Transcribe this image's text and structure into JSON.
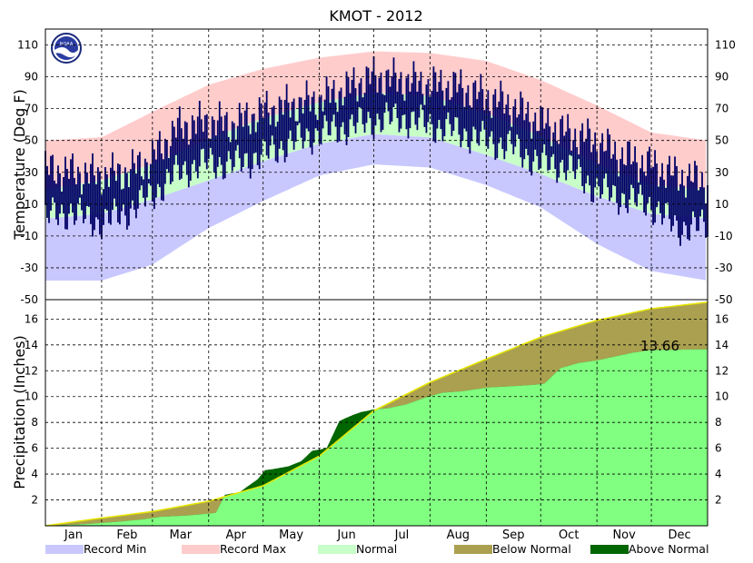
{
  "title": "KMOT - 2012",
  "colors": {
    "record_min": "#c8c8ff",
    "record_max": "#ffcccc",
    "normal": "#c8ffc8",
    "observed": "#000066",
    "precip_observed": "#80ff80",
    "below_normal": "#aaa050",
    "above_normal": "#006600",
    "normal_line": "#e6e600"
  },
  "chart_data": [
    {
      "type": "area",
      "panel": "temperature",
      "ylabel": "Temperature (Deg F)",
      "ylim": [
        -50,
        120
      ],
      "yticks": [
        110,
        90,
        70,
        50,
        30,
        10,
        -10,
        -30,
        -50
      ],
      "xlim_day": [
        1,
        366
      ],
      "months": [
        "Jan",
        "Feb",
        "Mar",
        "Apr",
        "May",
        "Jun",
        "Jul",
        "Aug",
        "Sep",
        "Oct",
        "Nov",
        "Dec"
      ],
      "grid": true,
      "bands": {
        "record_min": {
          "day": [
            1,
            32,
            60,
            91,
            121,
            152,
            182,
            213,
            244,
            274,
            305,
            335,
            366
          ],
          "low": [
            -38,
            -38,
            -28,
            -5,
            12,
            28,
            35,
            33,
            22,
            8,
            -15,
            -32,
            -38
          ]
        },
        "record_max": {
          "day": [
            1,
            32,
            60,
            91,
            121,
            152,
            182,
            213,
            244,
            274,
            305,
            335,
            366
          ],
          "high": [
            50,
            52,
            68,
            85,
            95,
            102,
            106,
            105,
            100,
            88,
            72,
            55,
            50
          ]
        },
        "normal": {
          "day": [
            1,
            32,
            60,
            91,
            121,
            152,
            182,
            213,
            244,
            274,
            305,
            335,
            366
          ],
          "low": [
            1,
            4,
            13,
            25,
            37,
            48,
            54,
            52,
            41,
            29,
            15,
            4,
            1
          ],
          "high": [
            19,
            25,
            35,
            51,
            64,
            74,
            80,
            78,
            67,
            53,
            35,
            22,
            19
          ]
        }
      },
      "observed": {
        "day": [
          1,
          15,
          31,
          46,
          59,
          74,
          90,
          105,
          120,
          135,
          151,
          166,
          181,
          196,
          212,
          227,
          243,
          258,
          273,
          288,
          304,
          319,
          334,
          349,
          366
        ],
        "high": [
          32,
          30,
          28,
          30,
          38,
          58,
          62,
          60,
          68,
          72,
          75,
          82,
          90,
          88,
          85,
          84,
          78,
          72,
          62,
          55,
          50,
          40,
          35,
          28,
          24
        ],
        "low": [
          2,
          5,
          -2,
          5,
          15,
          30,
          36,
          35,
          40,
          48,
          54,
          58,
          62,
          64,
          60,
          56,
          50,
          46,
          36,
          34,
          20,
          14,
          10,
          -5,
          -4
        ]
      }
    },
    {
      "type": "area",
      "panel": "precipitation",
      "ylabel": "Precipitation (Inches)",
      "ylim": [
        0,
        17.5
      ],
      "yticks": [
        2,
        4,
        6,
        8,
        10,
        12,
        14,
        16
      ],
      "xlim_day": [
        1,
        366
      ],
      "months": [
        "Jan",
        "Feb",
        "Mar",
        "Apr",
        "May",
        "Jun",
        "Jul",
        "Aug",
        "Sep",
        "Oct",
        "Nov",
        "Dec"
      ],
      "grid": true,
      "normal_cumulative": {
        "day": [
          1,
          32,
          60,
          91,
          121,
          152,
          182,
          213,
          244,
          274,
          305,
          335,
          366
        ],
        "value": [
          0,
          0.6,
          1.1,
          1.9,
          3.1,
          5.4,
          8.9,
          11.1,
          12.9,
          14.6,
          15.9,
          16.8,
          17.3
        ]
      },
      "observed_cumulative": {
        "day": [
          1,
          20,
          40,
          55,
          65,
          80,
          95,
          100,
          108,
          118,
          122,
          127,
          135,
          142,
          148,
          156,
          163,
          166,
          171,
          175,
          182,
          190,
          200,
          212,
          220,
          230,
          245,
          258,
          270,
          276,
          285,
          295,
          305,
          315,
          325,
          335,
          366
        ],
        "value": [
          0,
          0.1,
          0.3,
          0.5,
          0.7,
          0.8,
          1.0,
          2.4,
          2.6,
          3.6,
          4.3,
          4.4,
          4.6,
          5.0,
          5.8,
          6.0,
          8.1,
          8.3,
          8.6,
          8.8,
          9.0,
          9.1,
          9.4,
          10.0,
          10.3,
          10.4,
          10.7,
          10.8,
          10.9,
          11.0,
          12.2,
          12.6,
          12.8,
          13.1,
          13.4,
          13.6,
          13.66
        ]
      },
      "annotations": [
        "13.66"
      ]
    }
  ],
  "legend": [
    {
      "label": "Record Min",
      "color_key": "record_min"
    },
    {
      "label": "Record Max",
      "color_key": "record_max"
    },
    {
      "label": "Normal",
      "color_key": "normal"
    },
    {
      "label": "Below Normal",
      "color_key": "below_normal"
    },
    {
      "label": "Above Normal",
      "color_key": "above_normal"
    }
  ]
}
